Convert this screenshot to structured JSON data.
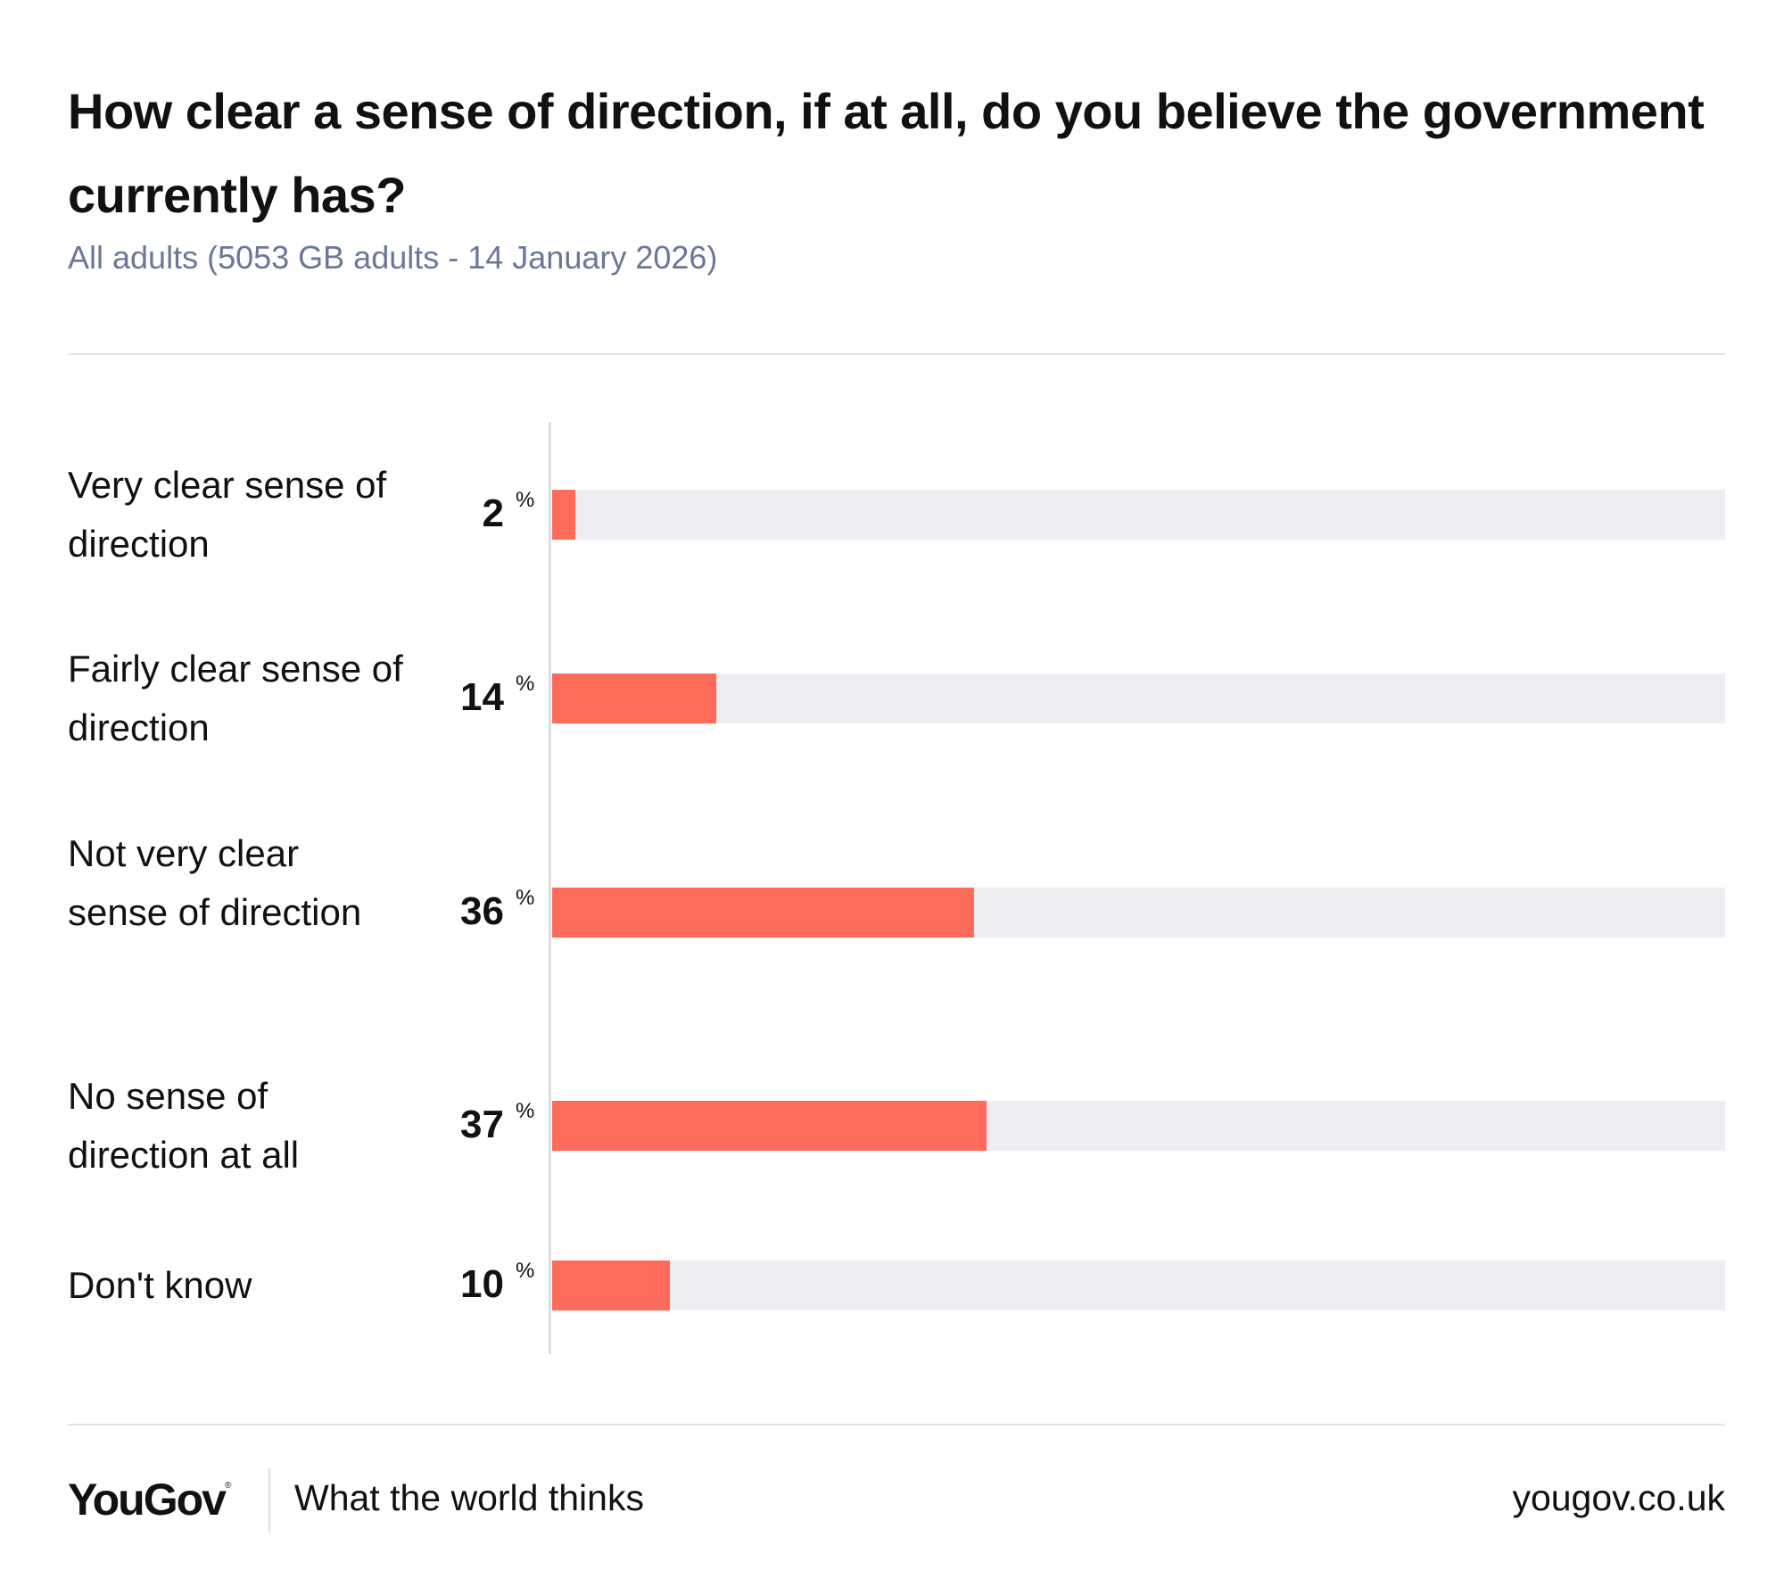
{
  "header": {
    "title": "How clear a sense of direction, if at all, do you believe the government currently has?",
    "subtitle": "All adults (5053 GB adults - 14 January 2026)"
  },
  "chart_data": {
    "type": "bar",
    "orientation": "horizontal",
    "title": "How clear a sense of direction, if at all, do you believe the government currently has?",
    "subtitle": "All adults (5053 GB adults - 14 January 2026)",
    "categories": [
      "Very clear sense of direction",
      "Fairly clear sense of direction",
      "Not very clear sense of direction",
      "No sense of direction at all",
      "Don't know"
    ],
    "values": [
      2,
      14,
      36,
      37,
      10
    ],
    "unit": "%",
    "xlim": [
      0,
      100
    ],
    "bar_color": "#ff6b5b",
    "track_color": "#eeeef2"
  },
  "footer": {
    "logo": "YouGov",
    "logo_mark": "®",
    "tagline": "What the world thinks",
    "url": "yougov.co.uk"
  }
}
